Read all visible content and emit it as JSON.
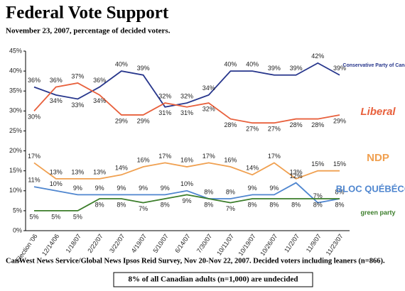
{
  "chart_data": {
    "type": "line",
    "title": "Federal Vote Support",
    "subtitle": "November 23, 2007, percentage of decided voters.",
    "source": "CanWest News Service/Global News Ipsos Reid Survey, Nov 20-Nov 22, 2007. Decided voters including leaners (n=866).",
    "annotation": "8% of all Canadian adults (n=1,000) are undecided",
    "categories": [
      "Election '06",
      "12/14/06",
      "1/18/07",
      "2/22/07",
      "3/22/07",
      "4/19/07",
      "5/10/07",
      "6/14/07",
      "7/30/07",
      "10/11/07",
      "10/19/07",
      "10/26/07",
      "11/2/07",
      "11/9/07",
      "11/23/07"
    ],
    "ylim": [
      0,
      45
    ],
    "yticks": [
      {
        "value": 0,
        "label": "0%"
      },
      {
        "value": 5,
        "label": "5%"
      },
      {
        "value": 10,
        "label": "10%"
      },
      {
        "value": 15,
        "label": "15%"
      },
      {
        "value": 20,
        "label": "20%"
      },
      {
        "value": 25,
        "label": "25%"
      },
      {
        "value": 30,
        "label": "30%"
      },
      {
        "value": 35,
        "label": "35%"
      },
      {
        "value": 40,
        "label": "40%"
      },
      {
        "value": 45,
        "label": "45%"
      }
    ],
    "series": [
      {
        "name": "Conservative Party of Canada",
        "color": "#27368c",
        "values": [
          36,
          34,
          33,
          36,
          40,
          39,
          31,
          32,
          34,
          40,
          40,
          39,
          39,
          42,
          39
        ],
        "value_labels": [
          "36%",
          "34%",
          "33%",
          "36%",
          "40%",
          "39%",
          "31%",
          "32%",
          "34%",
          "40%",
          "40%",
          "39%",
          "39%",
          "42%",
          "39%"
        ]
      },
      {
        "name": "Liberal",
        "color": "#e8603c",
        "values": [
          30,
          36,
          37,
          34,
          29,
          29,
          32,
          31,
          32,
          28,
          27,
          27,
          28,
          28,
          29
        ],
        "value_labels": [
          "30%",
          "36%",
          "37%",
          "34%",
          "29%",
          "29%",
          "32%",
          "31%",
          "32%",
          "28%",
          "27%",
          "27%",
          "28%",
          "28%",
          "29%"
        ]
      },
      {
        "name": "NDP",
        "color": "#f0a050",
        "values": [
          17,
          13,
          13,
          13,
          14,
          16,
          17,
          16,
          17,
          16,
          14,
          17,
          13,
          15,
          15
        ],
        "value_labels": [
          "17%",
          "13%",
          "13%",
          "13%",
          "14%",
          "16%",
          "17%",
          "16%",
          "17%",
          "16%",
          "14%",
          "17%",
          "13%",
          "15%",
          "15%"
        ]
      },
      {
        "name": "BLOC QUÉBÉCOIS",
        "color": "#4f86cf",
        "values": [
          11,
          10,
          9,
          9,
          9,
          9,
          9,
          10,
          8,
          8,
          9,
          9,
          12,
          7,
          8
        ],
        "value_labels": [
          "11%",
          "10%",
          "9%",
          "9%",
          "9%",
          "9%",
          "9%",
          "10%",
          "8%",
          "8%",
          "9%",
          "9%",
          "12%",
          "7%",
          "8%"
        ]
      },
      {
        "name": "green party",
        "color": "#3b7d2a",
        "values": [
          5,
          5,
          5,
          8,
          8,
          7,
          8,
          9,
          8,
          7,
          8,
          8,
          8,
          8,
          8
        ],
        "value_labels": [
          "5%",
          "5%",
          "5%",
          "8%",
          "8%",
          "7%",
          "8%",
          "9%",
          "8%",
          "7%",
          "8%",
          "8%",
          "8%",
          "8%",
          "8%"
        ]
      }
    ]
  }
}
